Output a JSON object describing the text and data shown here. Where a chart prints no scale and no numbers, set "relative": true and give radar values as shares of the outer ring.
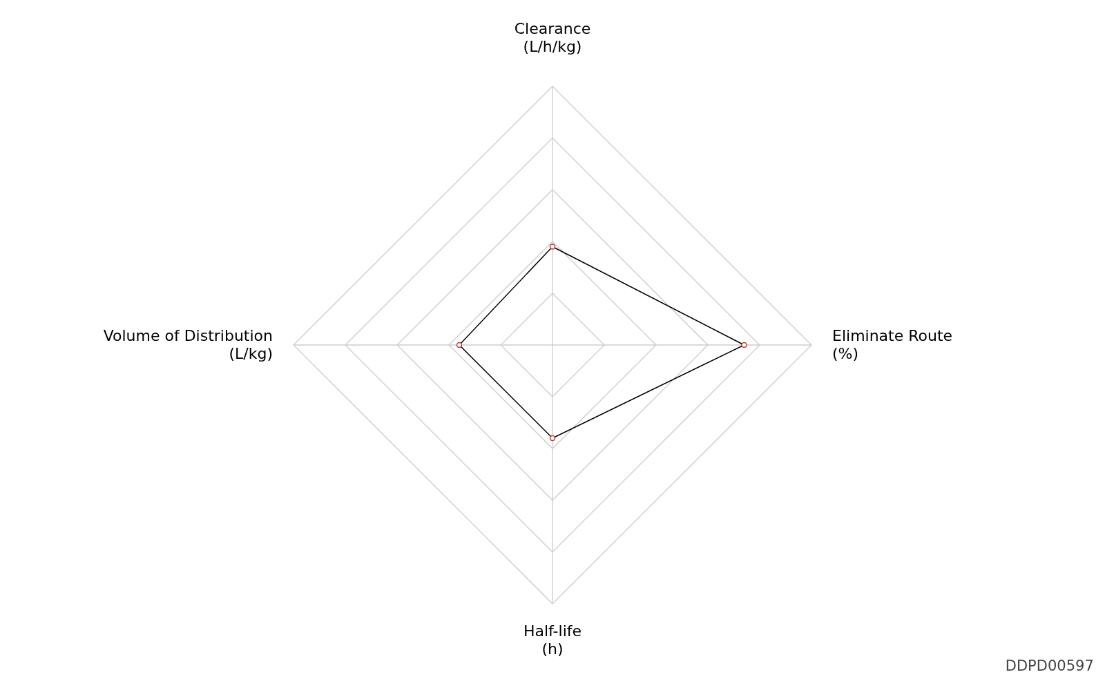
{
  "chart_data": {
    "type": "radar",
    "relative": true,
    "grid": true,
    "marker": "circle",
    "categories": [
      "Clearance\n(L/h/kg)",
      "Eliminate Route\n(%)",
      "Half-life\n(h)",
      "Volume of Distribution\n(L/kg)"
    ],
    "series": [
      {
        "color": "#000000",
        "values": [
          0.38,
          0.74,
          0.36,
          0.36
        ]
      }
    ],
    "annotations": [
      "DDPD00597"
    ]
  }
}
